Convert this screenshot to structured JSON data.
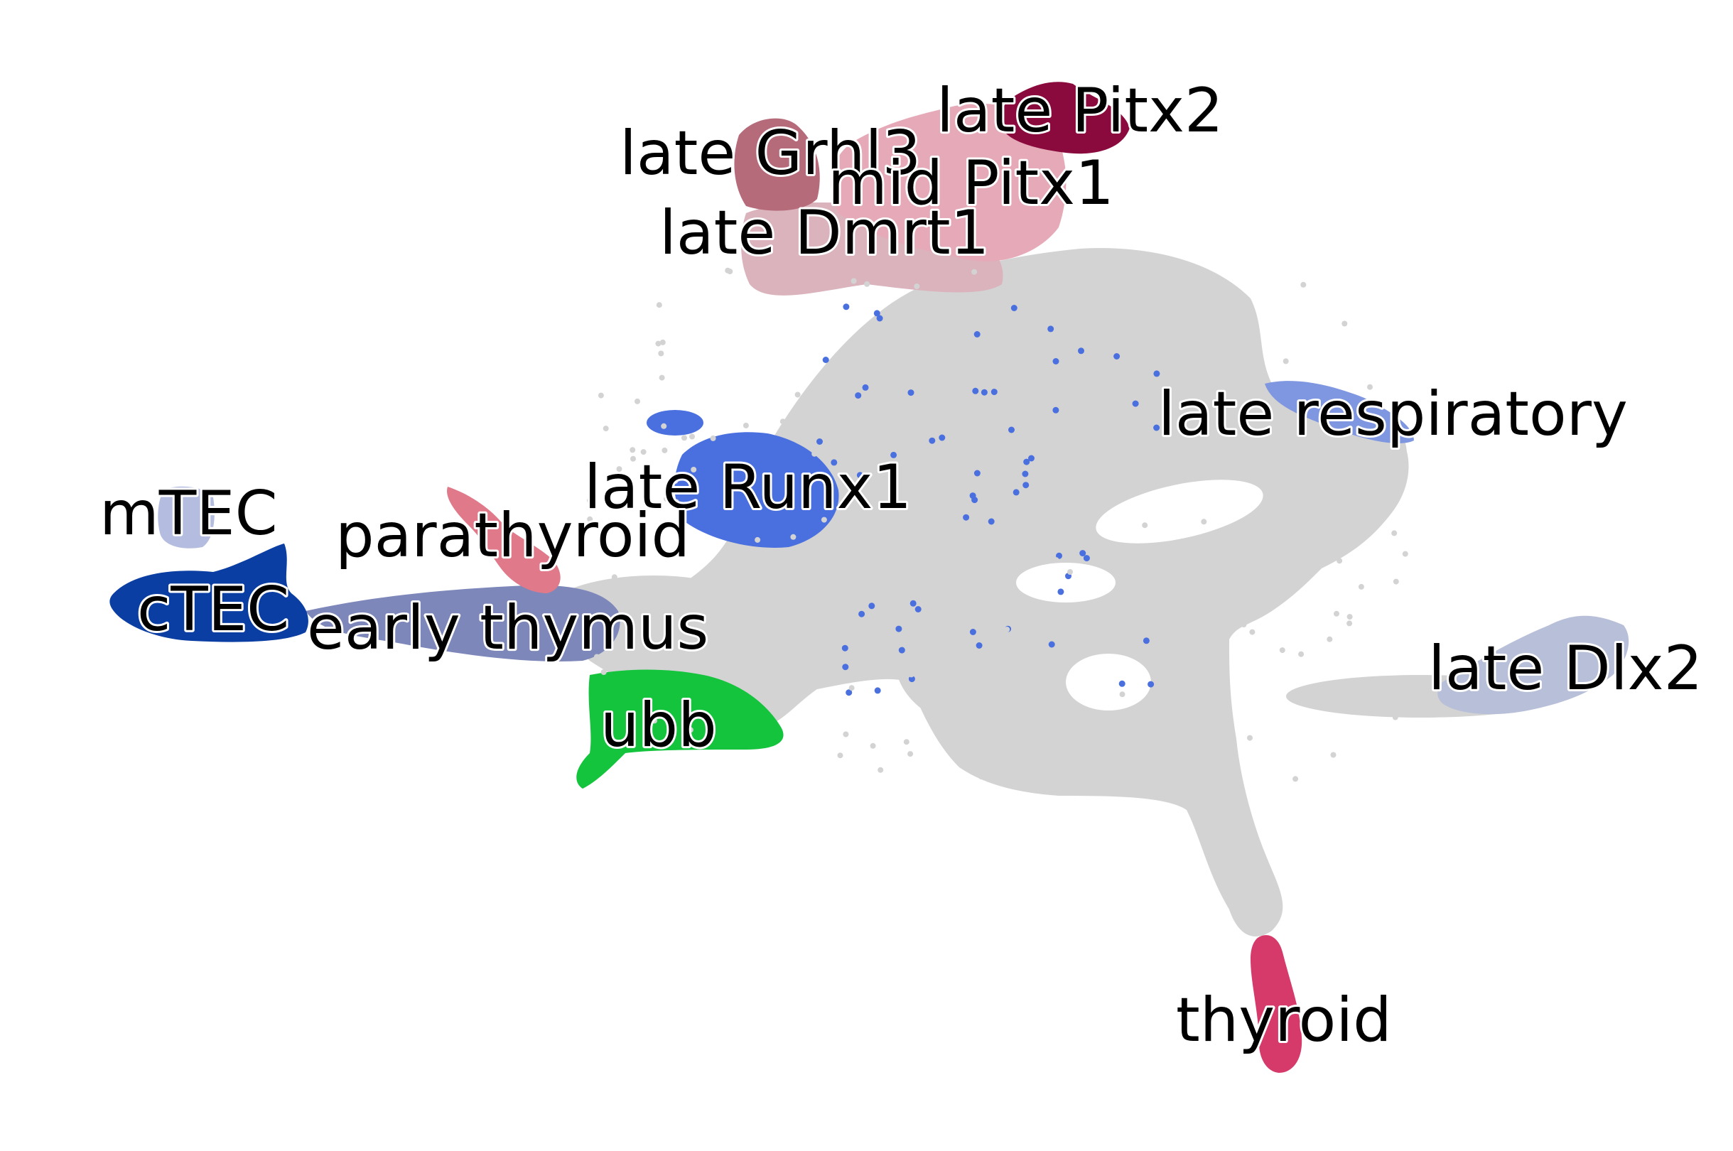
{
  "chart_data": {
    "type": "scatter",
    "title": "",
    "xlabel": "",
    "ylabel": "",
    "axes_visible": false,
    "grid": false,
    "legend": "on data",
    "background_color": "#d3d3d3",
    "clusters": [
      {
        "name": "late Pitx2",
        "color": "#8b0a3d"
      },
      {
        "name": "late Grhl3",
        "color": "#b56b7a"
      },
      {
        "name": "mid Pitx1",
        "color": "#e6a9b8"
      },
      {
        "name": "late Dmrt1",
        "color": "#dbb3bd"
      },
      {
        "name": "late respiratory",
        "color": "#7f96e0"
      },
      {
        "name": "late Runx1",
        "color": "#4a70e0"
      },
      {
        "name": "mTEC",
        "color": "#b4bde0"
      },
      {
        "name": "parathyroid",
        "color": "#e07a8a"
      },
      {
        "name": "cTEC",
        "color": "#0a3ea3"
      },
      {
        "name": "early thymus",
        "color": "#7d87ba"
      },
      {
        "name": "ubb",
        "color": "#14c43c"
      },
      {
        "name": "late Dlx2",
        "color": "#b8bfd8"
      },
      {
        "name": "thyroid",
        "color": "#d63a6b"
      }
    ]
  }
}
